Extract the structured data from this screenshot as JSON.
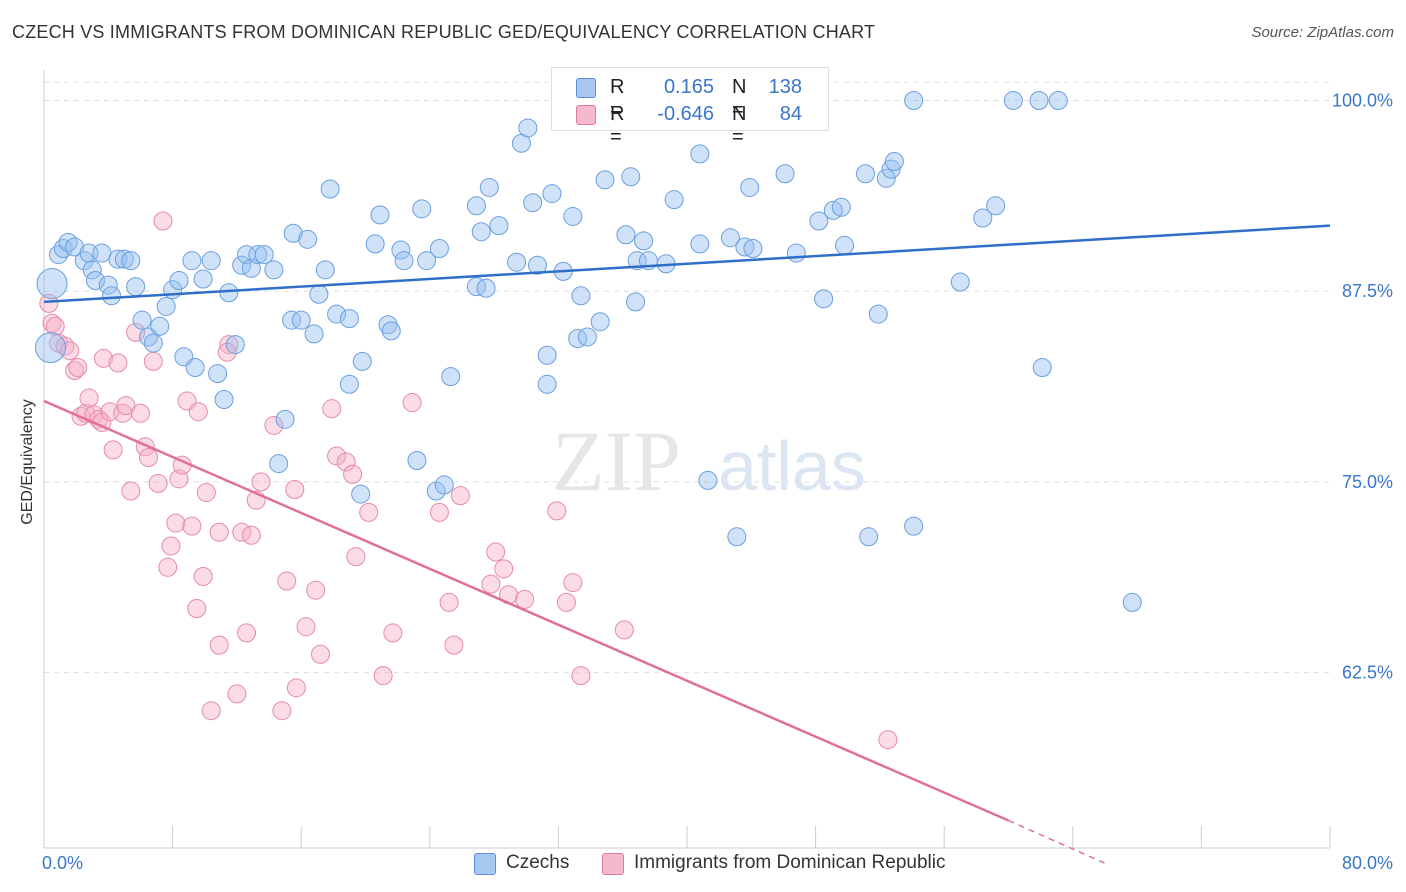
{
  "title": "CZECH VS IMMIGRANTS FROM DOMINICAN REPUBLIC GED/EQUIVALENCY CORRELATION CHART",
  "source": "Source: ZipAtlas.com",
  "watermark": {
    "zip": "ZIP",
    "atlas": "atlas"
  },
  "legend": {
    "rows": [
      {
        "r_label": "R =",
        "r_value": "0.165",
        "n_label": "N =",
        "n_value": "138",
        "color": "#a9c8f0",
        "border": "#5b8fd6"
      },
      {
        "r_label": "R =",
        "r_value": "-0.646",
        "n_label": "N =",
        "n_value": "84",
        "color": "#f5b9cc",
        "border": "#e07aa0"
      }
    ]
  },
  "bottom_legend": [
    {
      "label": "Czechs",
      "color": "#a9c8f0",
      "border": "#5b8fd6"
    },
    {
      "label": "Immigrants from Dominican Republic",
      "color": "#f5b9cc",
      "border": "#e07aa0"
    }
  ],
  "chart_data": {
    "type": "scatter",
    "ylabel": "GED/Equivalency",
    "xlim": [
      0,
      80
    ],
    "ylim": [
      51,
      102
    ],
    "x_tick_labels": [
      "0.0%",
      "80.0%"
    ],
    "y_ticks": [
      62.5,
      75.0,
      87.5,
      100.0
    ],
    "y_tick_labels": [
      "62.5%",
      "75.0%",
      "87.5%",
      "100.0%"
    ],
    "grid": true,
    "colors": {
      "blue": "#6b9fe0",
      "blue_fill": "rgba(150,190,240,0.45)",
      "pink": "#e88aaa",
      "pink_fill": "rgba(245,175,200,0.45)",
      "blue_line": "#2f6fc8",
      "pink_line": "#e0709a",
      "tick_label": "#3a76c9"
    },
    "series": [
      {
        "name": "Czechs",
        "trend": {
          "x0": 0,
          "y0": 86.8,
          "x1": 80,
          "y1": 91.8
        },
        "points": [
          [
            0.5,
            88
          ],
          [
            0.4,
            83.8
          ],
          [
            0.9,
            89.9
          ],
          [
            1.2,
            90.3
          ],
          [
            1.5,
            90.7
          ],
          [
            1.9,
            90.4
          ],
          [
            2.5,
            89.5
          ],
          [
            2.8,
            90
          ],
          [
            3,
            88.9
          ],
          [
            3.2,
            88.2
          ],
          [
            3.6,
            90
          ],
          [
            4,
            87.9
          ],
          [
            4.2,
            87.2
          ],
          [
            4.6,
            89.6
          ],
          [
            5,
            89.6
          ],
          [
            5.4,
            89.5
          ],
          [
            5.7,
            87.8
          ],
          [
            6.1,
            85.6
          ],
          [
            6.5,
            84.5
          ],
          [
            6.8,
            84.1
          ],
          [
            7.2,
            85.2
          ],
          [
            7.6,
            86.5
          ],
          [
            8,
            87.6
          ],
          [
            8.4,
            88.2
          ],
          [
            8.7,
            83.2
          ],
          [
            9.2,
            89.5
          ],
          [
            9.4,
            82.5
          ],
          [
            9.9,
            88.3
          ],
          [
            10.4,
            89.5
          ],
          [
            10.8,
            82.1
          ],
          [
            11.2,
            80.4
          ],
          [
            11.5,
            87.4
          ],
          [
            11.9,
            84
          ],
          [
            12.3,
            89.2
          ],
          [
            12.6,
            89.9
          ],
          [
            12.9,
            89
          ],
          [
            13.3,
            89.9
          ],
          [
            13.7,
            89.9
          ],
          [
            14.3,
            88.9
          ],
          [
            14.6,
            76.2
          ],
          [
            15,
            79.1
          ],
          [
            15.4,
            85.6
          ],
          [
            15.5,
            91.3
          ],
          [
            16,
            85.6
          ],
          [
            16.4,
            90.9
          ],
          [
            16.8,
            84.7
          ],
          [
            17.1,
            87.3
          ],
          [
            17.5,
            88.9
          ],
          [
            17.8,
            94.2
          ],
          [
            18.2,
            86
          ],
          [
            19,
            81.4
          ],
          [
            19,
            85.7
          ],
          [
            19.7,
            74.2
          ],
          [
            19.8,
            82.9
          ],
          [
            20.6,
            90.6
          ],
          [
            20.9,
            92.5
          ],
          [
            21.4,
            85.3
          ],
          [
            21.6,
            84.9
          ],
          [
            22.2,
            90.2
          ],
          [
            22.4,
            89.5
          ],
          [
            23.2,
            76.4
          ],
          [
            23.5,
            92.9
          ],
          [
            23.8,
            89.5
          ],
          [
            24.4,
            74.4
          ],
          [
            24.6,
            90.3
          ],
          [
            24.9,
            74.8
          ],
          [
            25.3,
            81.9
          ],
          [
            26.9,
            93.1
          ],
          [
            26.9,
            87.8
          ],
          [
            27.2,
            91.4
          ],
          [
            27.5,
            87.7
          ],
          [
            27.7,
            94.3
          ],
          [
            28.3,
            91.8
          ],
          [
            29.4,
            89.4
          ],
          [
            29.7,
            97.2
          ],
          [
            30.1,
            98.2
          ],
          [
            30.4,
            93.3
          ],
          [
            30.7,
            89.2
          ],
          [
            31.3,
            83.3
          ],
          [
            31.3,
            81.4
          ],
          [
            31.6,
            93.9
          ],
          [
            32.3,
            88.8
          ],
          [
            32.9,
            92.4
          ],
          [
            33.2,
            84.4
          ],
          [
            33.4,
            87.2
          ],
          [
            33.8,
            84.5
          ],
          [
            34.6,
            85.5
          ],
          [
            34.9,
            94.8
          ],
          [
            35,
            98.8
          ],
          [
            36.2,
            91.2
          ],
          [
            36.5,
            95
          ],
          [
            36.8,
            86.8
          ],
          [
            36.9,
            89.5
          ],
          [
            37.3,
            90.8
          ],
          [
            37.6,
            89.5
          ],
          [
            38.7,
            89.3
          ],
          [
            39.2,
            93.5
          ],
          [
            39.4,
            100
          ],
          [
            40.8,
            96.5
          ],
          [
            40.8,
            90.6
          ],
          [
            41.3,
            75.1
          ],
          [
            42.7,
            91
          ],
          [
            43.1,
            71.4
          ],
          [
            43.6,
            90.4
          ],
          [
            43.9,
            94.3
          ],
          [
            44.1,
            90.3
          ],
          [
            46.1,
            95.2
          ],
          [
            46.8,
            90
          ],
          [
            48.2,
            92.1
          ],
          [
            48.5,
            87
          ],
          [
            49.1,
            92.8
          ],
          [
            49.6,
            93
          ],
          [
            49.8,
            90.5
          ],
          [
            51.1,
            95.2
          ],
          [
            51.3,
            71.4
          ],
          [
            51.9,
            86
          ],
          [
            52.4,
            94.9
          ],
          [
            52.7,
            95.5
          ],
          [
            52.9,
            96
          ],
          [
            54.1,
            100
          ],
          [
            54.1,
            72.1
          ],
          [
            57,
            88.1
          ],
          [
            58.4,
            92.3
          ],
          [
            59.2,
            93.1
          ],
          [
            60.3,
            100
          ],
          [
            61.9,
            100
          ],
          [
            62.1,
            82.5
          ],
          [
            63.1,
            100
          ],
          [
            67.7,
            67.1
          ]
        ]
      },
      {
        "name": "Immigrants from Dominican Republic",
        "trend": {
          "x0": 0,
          "y0": 80.3,
          "x1": 60,
          "y1": 52.8,
          "dash_to_x": 66,
          "dash_to_y": 50
        },
        "points": [
          [
            0.3,
            86.7
          ],
          [
            0.5,
            85.4
          ],
          [
            0.7,
            85.2
          ],
          [
            0.9,
            84.1
          ],
          [
            1.3,
            83.9
          ],
          [
            1.6,
            83.6
          ],
          [
            1.9,
            82.3
          ],
          [
            2.1,
            82.5
          ],
          [
            2.3,
            79.3
          ],
          [
            2.6,
            79.5
          ],
          [
            2.8,
            80.5
          ],
          [
            3.1,
            79.4
          ],
          [
            3.4,
            79.1
          ],
          [
            3.6,
            78.9
          ],
          [
            3.7,
            83.1
          ],
          [
            4.1,
            79.6
          ],
          [
            4.3,
            77.1
          ],
          [
            4.6,
            82.8
          ],
          [
            4.9,
            79.5
          ],
          [
            5.1,
            80
          ],
          [
            5.4,
            74.4
          ],
          [
            5.7,
            84.8
          ],
          [
            6,
            79.5
          ],
          [
            6.3,
            77.3
          ],
          [
            6.5,
            76.6
          ],
          [
            6.8,
            82.9
          ],
          [
            7.1,
            74.9
          ],
          [
            7.4,
            92.1
          ],
          [
            7.7,
            69.4
          ],
          [
            7.9,
            70.8
          ],
          [
            8.2,
            72.3
          ],
          [
            8.4,
            75.2
          ],
          [
            8.6,
            76.1
          ],
          [
            8.9,
            80.3
          ],
          [
            9.2,
            72.1
          ],
          [
            9.5,
            66.7
          ],
          [
            9.6,
            79.6
          ],
          [
            9.9,
            68.8
          ],
          [
            10.1,
            74.3
          ],
          [
            10.4,
            60
          ],
          [
            10.9,
            71.7
          ],
          [
            10.9,
            64.3
          ],
          [
            11.5,
            84
          ],
          [
            11.4,
            83.5
          ],
          [
            12,
            61.1
          ],
          [
            12.3,
            71.7
          ],
          [
            12.6,
            65.1
          ],
          [
            12.9,
            71.5
          ],
          [
            13.2,
            73.8
          ],
          [
            13.5,
            75
          ],
          [
            14.3,
            78.7
          ],
          [
            14.8,
            60
          ],
          [
            15.1,
            68.5
          ],
          [
            15.6,
            74.5
          ],
          [
            15.7,
            61.5
          ],
          [
            16.3,
            65.5
          ],
          [
            16.9,
            67.9
          ],
          [
            17.2,
            63.7
          ],
          [
            17.9,
            79.8
          ],
          [
            18.2,
            76.7
          ],
          [
            18.8,
            76.3
          ],
          [
            19.2,
            75.5
          ],
          [
            19.4,
            70.1
          ],
          [
            20.2,
            73
          ],
          [
            21.1,
            62.3
          ],
          [
            21.7,
            65.1
          ],
          [
            22.9,
            80.2
          ],
          [
            24.6,
            73
          ],
          [
            25.2,
            67.1
          ],
          [
            25.5,
            64.3
          ],
          [
            25.9,
            74.1
          ],
          [
            27.8,
            68.3
          ],
          [
            28.1,
            70.4
          ],
          [
            28.6,
            69.3
          ],
          [
            28.9,
            67.6
          ],
          [
            29.9,
            67.3
          ],
          [
            31.9,
            73.1
          ],
          [
            32.5,
            67.1
          ],
          [
            32.9,
            68.4
          ],
          [
            33.4,
            62.3
          ],
          [
            36.1,
            65.3
          ],
          [
            52.5,
            58.1
          ]
        ]
      }
    ]
  }
}
